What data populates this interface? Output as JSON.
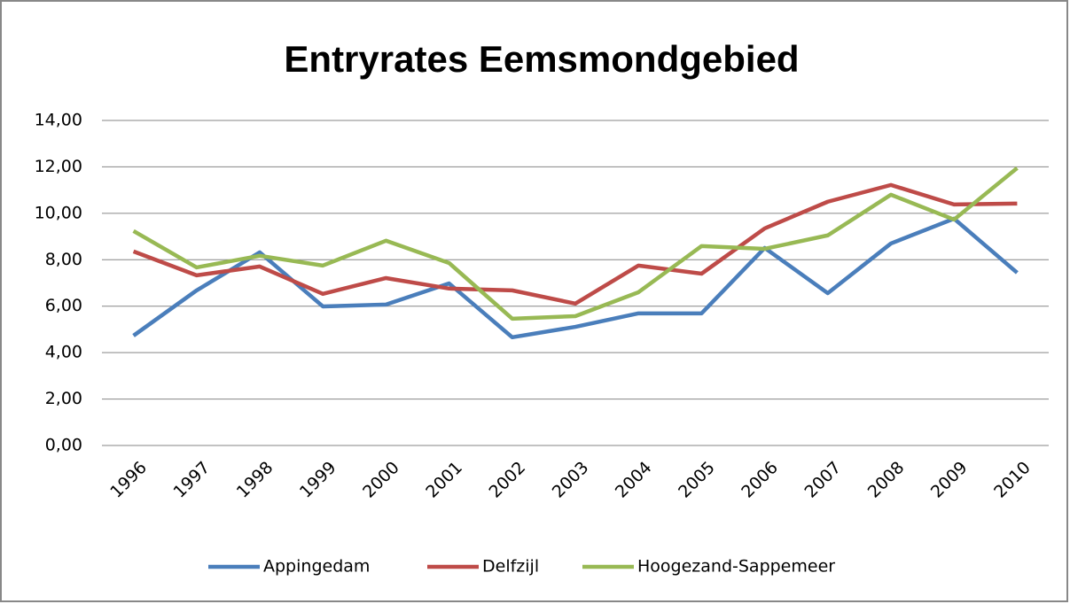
{
  "chart_data": {
    "type": "line",
    "title": "Entryrates Eemsmondgebied",
    "categories": [
      "1996",
      "1997",
      "1998",
      "1999",
      "2000",
      "2001",
      "2002",
      "2003",
      "2004",
      "2005",
      "2006",
      "2007",
      "2008",
      "2009",
      "2010"
    ],
    "series": [
      {
        "name": "Appingedam",
        "color": "#4a7ebb",
        "values": [
          4.73,
          6.68,
          8.32,
          5.99,
          6.07,
          6.98,
          4.66,
          5.11,
          5.69,
          5.69,
          8.51,
          6.56,
          8.7,
          9.77,
          7.44
        ]
      },
      {
        "name": "Delfzijl",
        "color": "#be4b48",
        "values": [
          8.36,
          7.33,
          7.71,
          6.53,
          7.21,
          6.76,
          6.68,
          6.11,
          7.75,
          7.4,
          9.35,
          10.5,
          11.22,
          10.38,
          10.42
        ]
      },
      {
        "name": "Hoogezand-Sappemeer",
        "color": "#98b954",
        "values": [
          9.24,
          7.67,
          8.17,
          7.75,
          8.82,
          7.86,
          5.46,
          5.57,
          6.6,
          8.59,
          8.47,
          9.05,
          10.8,
          9.73,
          11.95
        ]
      }
    ],
    "ylim": [
      0,
      14
    ],
    "yticks": [
      {
        "value": 0,
        "label": "0,00"
      },
      {
        "value": 2,
        "label": "2,00"
      },
      {
        "value": 4,
        "label": "4,00"
      },
      {
        "value": 6,
        "label": "6,00"
      },
      {
        "value": 8,
        "label": "8,00"
      },
      {
        "value": 10,
        "label": "10,00"
      },
      {
        "value": 12,
        "label": "12,00"
      },
      {
        "value": 14,
        "label": "14,00"
      }
    ],
    "grid": true,
    "legend": "bottom"
  }
}
